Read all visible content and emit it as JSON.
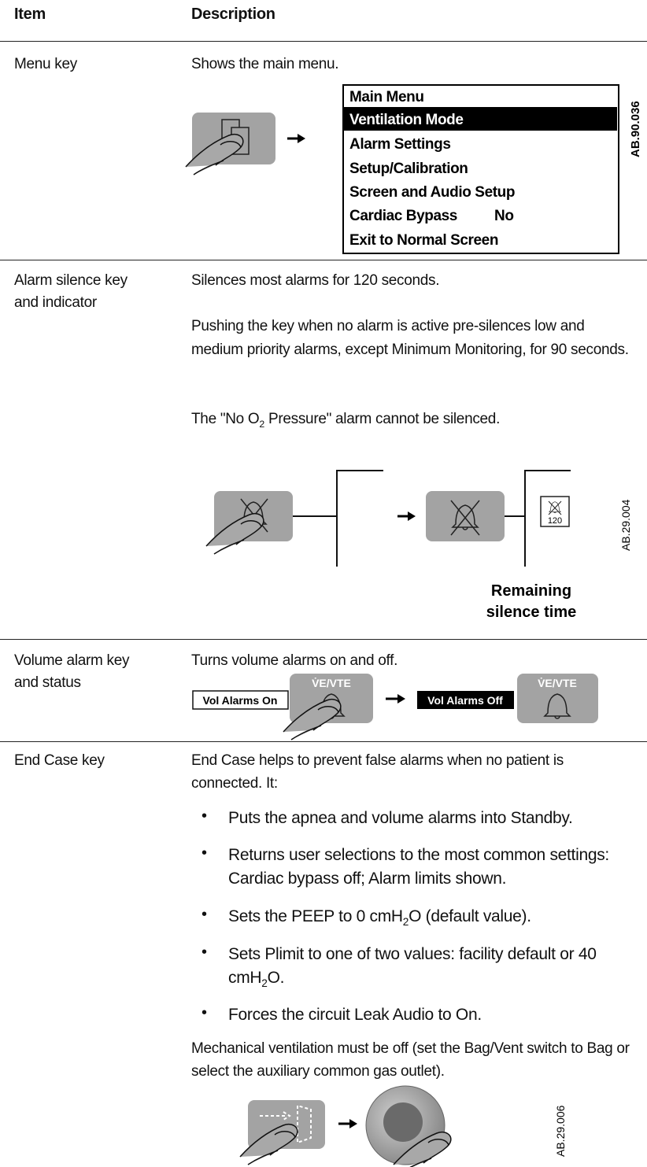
{
  "header": {
    "item": "Item",
    "description": "Description"
  },
  "rows": [
    {
      "item": [
        "Menu key"
      ],
      "description": [
        "Shows the main menu."
      ],
      "figure": {
        "menu": [
          "Main Menu",
          "Ventilation Mode",
          "Alarm Settings",
          "Setup/Calibration",
          "Screen and Audio Setup",
          "Cardiac Bypass",
          "Exit to Normal Screen"
        ],
        "cardiac_bypass_value": "No",
        "id": "AB.90.036"
      }
    },
    {
      "item": [
        "Alarm silence key",
        "and indicator"
      ],
      "description": [
        "Silences most alarms for 120 seconds.",
        "Pushing the key when no alarm is active pre-silences low and medium priority alarms, except Minimum Monitoring, for 90 seconds.",
        [
          "The \"No O",
          "2",
          " Pressure\" alarm cannot be silenced."
        ]
      ],
      "figure": {
        "timer": "120",
        "caption": [
          "Remaining",
          "silence time"
        ],
        "id": "AB.29.004"
      }
    },
    {
      "item": [
        "Volume alarm key",
        "and status"
      ],
      "description": [
        "Turns volume alarms on and off."
      ],
      "figure": {
        "on": "Vol Alarms On",
        "off": "Vol Alarms Off",
        "key_label": "V̇E/VTE"
      }
    },
    {
      "item": [
        "End Case key"
      ],
      "description": [
        "End Case helps to prevent false alarms when no patient is connected. It:"
      ],
      "bullets": [
        [
          "Puts the apnea and volume alarms into Standby."
        ],
        [
          "Returns user selections to the most common settings: Cardiac bypass off; Alarm limits shown."
        ],
        [
          "Sets the PEEP to 0 cmH",
          "2",
          "O (default value)."
        ],
        [
          "Sets Plimit to one of two values: facility default or 40 cmH",
          "2",
          "O."
        ],
        [
          "Forces the circuit Leak Audio to On."
        ]
      ],
      "note": "Mechanical ventilation must be off (set the Bag/Vent switch to Bag or select the auxiliary common gas outlet).",
      "figure": {
        "id": "AB.29.006"
      }
    }
  ]
}
